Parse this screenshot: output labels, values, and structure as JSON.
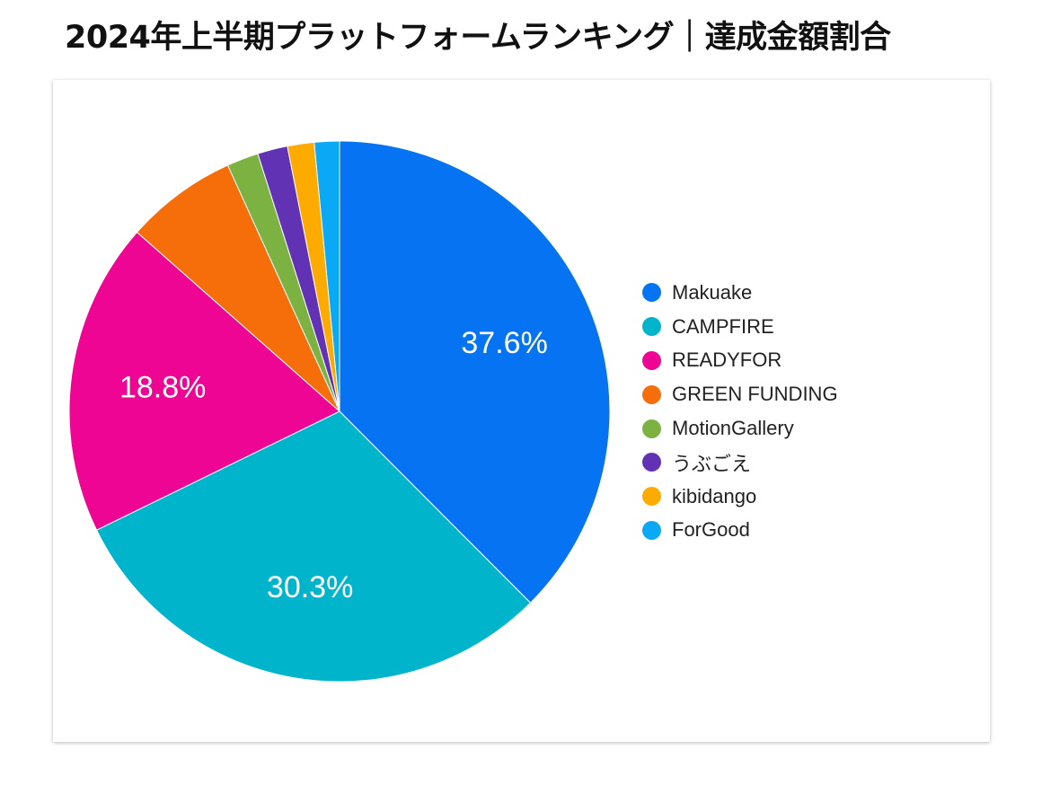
{
  "title": "2024年上半期プラットフォームランキング｜達成金額割合",
  "chart_data": {
    "type": "pie",
    "title": "2024年上半期プラットフォームランキング｜達成金額割合",
    "unit": "%",
    "legend_position": "right",
    "slices": [
      {
        "name": "Makuake",
        "value": 37.6,
        "label": "37.6%",
        "color": "#0673f2"
      },
      {
        "name": "CAMPFIRE",
        "value": 30.3,
        "label": "30.3%",
        "color": "#00b4cb"
      },
      {
        "name": "READYFOR",
        "value": 18.8,
        "label": "18.8%",
        "color": "#ee0594"
      },
      {
        "name": "GREEN FUNDING",
        "value": 6.7,
        "label": "",
        "color": "#f56e0a"
      },
      {
        "name": "MotionGallery",
        "value": 1.9,
        "label": "",
        "color": "#7cb242"
      },
      {
        "name": "うぶごえ",
        "value": 1.8,
        "label": "",
        "color": "#6133b4"
      },
      {
        "name": "kibidango",
        "value": 1.6,
        "label": "",
        "color": "#feab00"
      },
      {
        "name": "ForGood",
        "value": 1.5,
        "label": "",
        "color": "#0aa8f5"
      }
    ]
  }
}
